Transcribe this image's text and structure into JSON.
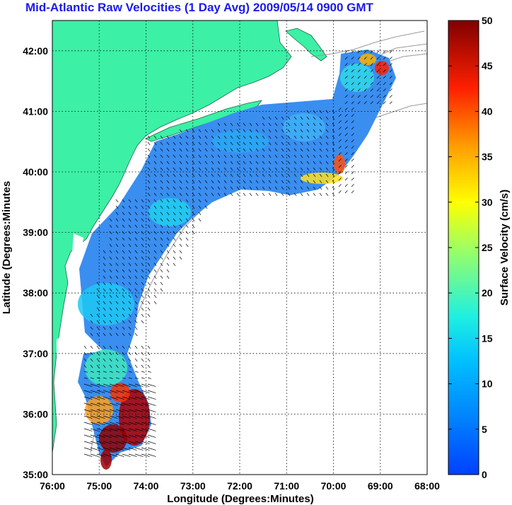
{
  "title": "Mid-Atlantic Raw Velocities (1 Day Avg) 2009/05/14 0900 GMT",
  "axes": {
    "xlabel": "Longitude (Degrees:Minutes)",
    "ylabel": "Latitude (Degrees:Minutes",
    "x_ticks": [
      "76:00",
      "75:00",
      "74:00",
      "73:00",
      "72:00",
      "71:00",
      "70:00",
      "69:00",
      "68:00"
    ],
    "y_ticks": [
      "35:00",
      "36:00",
      "37:00",
      "38:00",
      "39:00",
      "40:00",
      "41:00",
      "42:00"
    ],
    "x_range_deg_west": [
      76,
      68
    ],
    "y_range_deg_north": [
      35,
      42.5
    ],
    "grid": "dotted"
  },
  "colorbar": {
    "label": "Surface Velocity (cm/s)",
    "ticks": [
      "0",
      "5",
      "10",
      "15",
      "20",
      "25",
      "30",
      "35",
      "40",
      "45",
      "50"
    ],
    "range": [
      0,
      50
    ],
    "colormap": "jet"
  },
  "colors": {
    "land": "#3cf0a6",
    "ocean": "#ffffff",
    "title": "#1a1af0",
    "isobath": "#9a9a9a",
    "vector": "#000000"
  }
}
